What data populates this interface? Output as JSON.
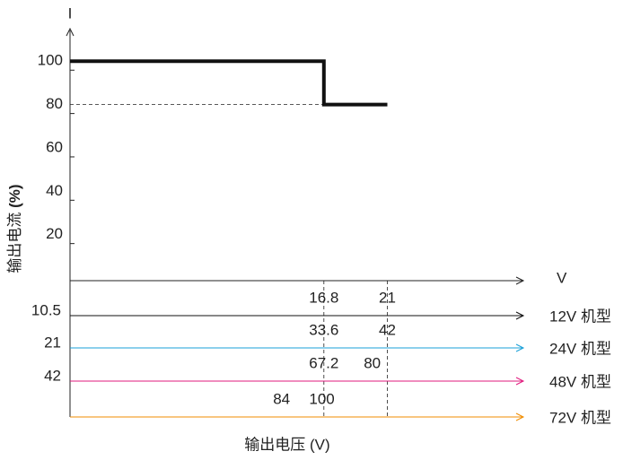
{
  "chart_data": {
    "type": "line",
    "y_axis_symbol": "I",
    "x_axis_symbol": "V",
    "y_label": "输出电流",
    "y_unit": "(%)",
    "x_label": "输出电压 (V)",
    "ylim": [
      0,
      115
    ],
    "yticks": [
      20,
      40,
      60,
      80,
      100
    ],
    "xlim": [
      0,
      30
    ],
    "xticks": [
      16.8,
      21
    ],
    "series": [
      {
        "color": "#111111",
        "x": [
          0,
          16.8,
          16.8,
          21
        ],
        "values": [
          100,
          100,
          80,
          80
        ]
      }
    ],
    "model_scales": [
      {
        "name": "12V 机型",
        "color": "#111111",
        "min": 10.5,
        "xlim": [
          0,
          30
        ],
        "ticks": [
          16.8,
          21
        ]
      },
      {
        "name": "24V 机型",
        "color": "#1aa0d8",
        "min": 21,
        "xlim": [
          0,
          60
        ],
        "ticks": [
          33.6,
          42
        ]
      },
      {
        "name": "48V 机型",
        "color": "#e0197d",
        "min": 42,
        "xlim": [
          0,
          120
        ],
        "ticks": [
          67.2,
          80
        ]
      },
      {
        "name": "72V 机型",
        "color": "#f08c00",
        "xlim": [
          0,
          180
        ],
        "ticks": [
          84,
          100
        ]
      }
    ]
  }
}
